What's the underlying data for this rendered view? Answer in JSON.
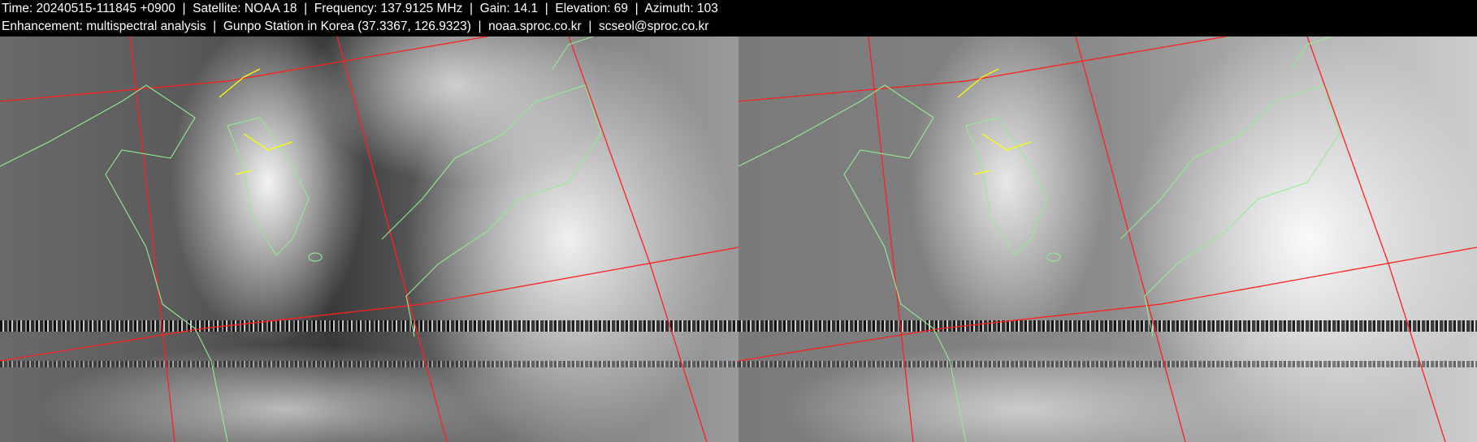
{
  "header": {
    "line1": "Time: 20240515-111845 +0900  |  Satellite: NOAA 18  |  Frequency: 137.9125 MHz  |  Gain: 14.1  |  Elevation: 69  |  Azimuth: 103",
    "line2": "Enhancement: multispectral analysis  |  Gunpo Station in Korea (37.3367, 126.9323)  |  noaa.sproc.co.kr  |  scseol@sproc.co.kr"
  },
  "panels": [
    {
      "kind": "channel-a"
    },
    {
      "kind": "channel-b"
    }
  ],
  "colors": {
    "grid": "#ff2020",
    "coast": "#90ee90",
    "border": "#ffff00",
    "background": "#000000"
  }
}
